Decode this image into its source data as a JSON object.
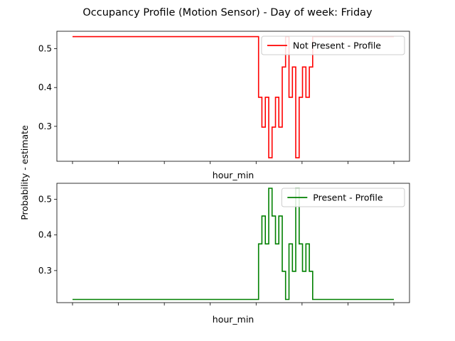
{
  "chart_data": [
    {
      "type": "line",
      "suptitle": "Occupancy Profile (Motion Sensor) - Day of week: Friday",
      "shared_ylabel": "Probability - estimate",
      "xlabel": "hour_min",
      "ylim": [
        0.21,
        0.545
      ],
      "yticks": [
        0.3,
        0.4,
        0.5
      ],
      "ytick_labels": [
        "0.3",
        "0.4",
        "0.5"
      ],
      "xlim": [
        0,
        95
      ],
      "xtick_count": 8,
      "legend_position": "upper right",
      "series": [
        {
          "name": "Not Present - Profile",
          "color": "#ff0000",
          "x": [
            0,
            55,
            55,
            56,
            56,
            57,
            57,
            58,
            58,
            59,
            59,
            60,
            60,
            61,
            61,
            62,
            62,
            63,
            63,
            64,
            64,
            65,
            65,
            66,
            66,
            67,
            67,
            68,
            68,
            69,
            69,
            70,
            70,
            71,
            71,
            72,
            72,
            73,
            73,
            74,
            74,
            75,
            75,
            76,
            76,
            77,
            77,
            78,
            78,
            79,
            79,
            80,
            80,
            81,
            81,
            82,
            82,
            83,
            83,
            84,
            84,
            85,
            85,
            86,
            86,
            87,
            87,
            88,
            88,
            89,
            89,
            90,
            90,
            91,
            91,
            92,
            92,
            93,
            93,
            94,
            94,
            95
          ],
          "y": [
            0.531,
            0.531,
            0.375,
            0.375,
            0.298,
            0.298,
            0.375,
            0.375,
            0.219,
            0.219,
            0.298,
            0.298,
            0.375,
            0.375,
            0.298,
            0.298,
            0.453,
            0.453,
            0.531,
            0.531,
            0.375,
            0.375,
            0.453,
            0.453,
            0.219,
            0.219,
            0.375,
            0.375,
            0.453,
            0.453,
            0.375,
            0.375,
            0.453,
            0.453,
            0.531,
            0.531,
            0.531,
            0.531,
            0.531,
            0.531,
            0.531,
            0.531,
            0.531,
            0.531,
            0.531,
            0.531,
            0.531,
            0.531,
            0.531,
            0.531,
            0.531,
            0.531,
            0.531,
            0.531,
            0.531,
            0.531,
            0.531,
            0.531,
            0.531,
            0.531,
            0.531,
            0.531,
            0.531,
            0.531,
            0.531,
            0.531,
            0.531,
            0.531,
            0.531,
            0.531,
            0.531,
            0.531,
            0.531,
            0.531,
            0.531,
            0.531,
            0.531,
            0.531,
            0.531,
            0.531,
            0.531,
            0.531
          ]
        },
        {
          "name": "Present - Profile",
          "color": "#008000",
          "x": [
            0,
            55,
            55,
            56,
            56,
            57,
            57,
            58,
            58,
            59,
            59,
            60,
            60,
            61,
            61,
            62,
            62,
            63,
            63,
            64,
            64,
            65,
            65,
            66,
            66,
            67,
            67,
            68,
            68,
            69,
            69,
            70,
            70,
            71,
            71,
            72,
            72,
            73,
            73,
            74,
            74,
            75,
            75,
            76,
            76,
            77,
            77,
            78,
            78,
            79,
            79,
            80,
            80,
            81,
            81,
            82,
            82,
            83,
            83,
            84,
            84,
            85,
            85,
            86,
            86,
            87,
            87,
            88,
            88,
            89,
            89,
            90,
            90,
            91,
            91,
            92,
            92,
            93,
            93,
            94,
            94,
            95
          ],
          "y": [
            0.219,
            0.219,
            0.375,
            0.375,
            0.453,
            0.453,
            0.375,
            0.375,
            0.531,
            0.531,
            0.453,
            0.453,
            0.375,
            0.375,
            0.453,
            0.453,
            0.298,
            0.298,
            0.219,
            0.219,
            0.375,
            0.375,
            0.298,
            0.298,
            0.531,
            0.531,
            0.375,
            0.375,
            0.298,
            0.298,
            0.375,
            0.375,
            0.298,
            0.298,
            0.219,
            0.219,
            0.219,
            0.219,
            0.219,
            0.219,
            0.219,
            0.219,
            0.219,
            0.219,
            0.219,
            0.219,
            0.219,
            0.219,
            0.219,
            0.219,
            0.219,
            0.219,
            0.219,
            0.219,
            0.219,
            0.219,
            0.219,
            0.219,
            0.219,
            0.219,
            0.219,
            0.219,
            0.219,
            0.219,
            0.219,
            0.219,
            0.219,
            0.219,
            0.219,
            0.219,
            0.219,
            0.219,
            0.219,
            0.219,
            0.219,
            0.219,
            0.219,
            0.219,
            0.219,
            0.219,
            0.219,
            0.219
          ]
        }
      ]
    }
  ]
}
